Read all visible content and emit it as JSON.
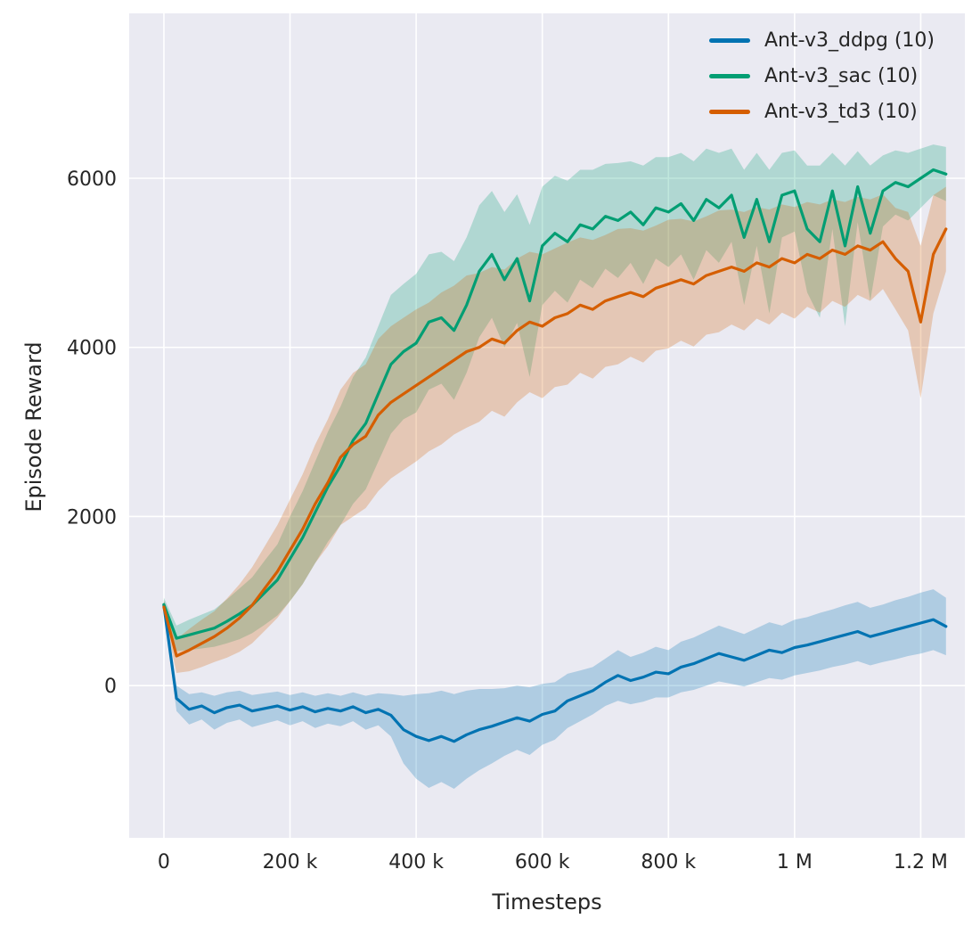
{
  "figure": {
    "background": "#ffffff",
    "plot_bg": "#eaeaf2",
    "grid_color": "#ffffff",
    "text_color": "#262626",
    "tick_font_size": 22
  },
  "chart_data": {
    "type": "line",
    "title": "",
    "xlabel": "Timesteps",
    "ylabel": "Episode Reward",
    "legend_position": "upper right",
    "grid": true,
    "xlim": [
      -55000,
      1270000
    ],
    "ylim": [
      -1800,
      7950
    ],
    "xticks": [
      {
        "v": 0,
        "label": "0"
      },
      {
        "v": 200000,
        "label": "200 k"
      },
      {
        "v": 400000,
        "label": "400 k"
      },
      {
        "v": 600000,
        "label": "600 k"
      },
      {
        "v": 800000,
        "label": "800 k"
      },
      {
        "v": 1000000,
        "label": "1 M"
      },
      {
        "v": 1200000,
        "label": "1.2 M"
      }
    ],
    "yticks": [
      {
        "v": 0,
        "label": "0"
      },
      {
        "v": 2000,
        "label": "2000"
      },
      {
        "v": 4000,
        "label": "4000"
      },
      {
        "v": 6000,
        "label": "6000"
      }
    ],
    "x": [
      0,
      20000,
      40000,
      60000,
      80000,
      100000,
      120000,
      140000,
      160000,
      180000,
      200000,
      220000,
      240000,
      260000,
      280000,
      300000,
      320000,
      340000,
      360000,
      380000,
      400000,
      420000,
      440000,
      460000,
      480000,
      500000,
      520000,
      540000,
      560000,
      580000,
      600000,
      620000,
      640000,
      660000,
      680000,
      700000,
      720000,
      740000,
      760000,
      780000,
      800000,
      820000,
      840000,
      860000,
      880000,
      900000,
      920000,
      940000,
      960000,
      980000,
      1000000,
      1020000,
      1040000,
      1060000,
      1080000,
      1100000,
      1120000,
      1140000,
      1160000,
      1180000,
      1200000,
      1220000,
      1240000
    ],
    "series": [
      {
        "name": "Ant-v3_ddpg (10)",
        "color": "#0173b2",
        "band_opacity": 0.25,
        "mean": [
          950,
          -150,
          -280,
          -240,
          -320,
          -260,
          -230,
          -300,
          -270,
          -240,
          -290,
          -250,
          -310,
          -270,
          -300,
          -250,
          -320,
          -280,
          -350,
          -520,
          -600,
          -650,
          -600,
          -660,
          -580,
          -520,
          -480,
          -430,
          -380,
          -420,
          -340,
          -300,
          -180,
          -120,
          -60,
          40,
          120,
          60,
          100,
          160,
          140,
          220,
          260,
          320,
          380,
          340,
          300,
          360,
          420,
          390,
          450,
          480,
          520,
          560,
          600,
          640,
          580,
          620,
          660,
          700,
          740,
          780,
          700
        ],
        "band": [
          60,
          150,
          180,
          160,
          200,
          180,
          170,
          190,
          180,
          170,
          180,
          170,
          190,
          180,
          180,
          170,
          200,
          190,
          250,
          400,
          500,
          560,
          540,
          560,
          520,
          480,
          440,
          400,
          380,
          400,
          360,
          340,
          320,
          300,
          280,
          280,
          300,
          280,
          290,
          300,
          280,
          300,
          310,
          320,
          330,
          320,
          310,
          320,
          330,
          320,
          330,
          330,
          340,
          340,
          350,
          350,
          340,
          340,
          350,
          350,
          360,
          360,
          340
        ]
      },
      {
        "name": "Ant-v3_sac (10)",
        "color": "#029e73",
        "band_opacity": 0.25,
        "mean": [
          960,
          560,
          600,
          640,
          680,
          760,
          850,
          950,
          1100,
          1250,
          1500,
          1750,
          2050,
          2350,
          2600,
          2900,
          3100,
          3450,
          3800,
          3950,
          4050,
          4300,
          4350,
          4200,
          4500,
          4900,
          5100,
          4800,
          5050,
          4550,
          5200,
          5350,
          5250,
          5450,
          5400,
          5550,
          5500,
          5600,
          5450,
          5650,
          5600,
          5700,
          5500,
          5750,
          5650,
          5800,
          5300,
          5750,
          5250,
          5800,
          5850,
          5400,
          5250,
          5850,
          5200,
          5900,
          5350,
          5850,
          5950,
          5900,
          6000,
          6100,
          6050
        ],
        "band": [
          80,
          150,
          180,
          200,
          220,
          260,
          300,
          330,
          380,
          420,
          500,
          550,
          600,
          650,
          700,
          750,
          780,
          800,
          820,
          800,
          820,
          800,
          780,
          820,
          800,
          780,
          750,
          800,
          760,
          900,
          700,
          680,
          720,
          650,
          700,
          620,
          680,
          600,
          700,
          600,
          650,
          600,
          700,
          600,
          650,
          550,
          800,
          550,
          850,
          500,
          480,
          750,
          900,
          450,
          950,
          420,
          800,
          420,
          380,
          400,
          350,
          300,
          320
        ]
      },
      {
        "name": "Ant-v3_td3 (10)",
        "color": "#d55e00",
        "band_opacity": 0.25,
        "mean": [
          930,
          350,
          420,
          500,
          580,
          680,
          800,
          950,
          1150,
          1350,
          1600,
          1850,
          2150,
          2400,
          2700,
          2850,
          2950,
          3200,
          3350,
          3450,
          3550,
          3650,
          3750,
          3850,
          3950,
          4000,
          4100,
          4050,
          4200,
          4300,
          4250,
          4350,
          4400,
          4500,
          4450,
          4550,
          4600,
          4650,
          4600,
          4700,
          4750,
          4800,
          4750,
          4850,
          4900,
          4950,
          4900,
          5000,
          4950,
          5050,
          5000,
          5100,
          5050,
          5150,
          5100,
          5200,
          5150,
          5250,
          5050,
          4900,
          4300,
          5100,
          5400
        ],
        "band": [
          80,
          200,
          250,
          280,
          300,
          350,
          400,
          450,
          500,
          550,
          600,
          650,
          700,
          750,
          800,
          850,
          850,
          900,
          900,
          900,
          900,
          880,
          900,
          880,
          900,
          880,
          850,
          870,
          850,
          830,
          850,
          820,
          840,
          800,
          820,
          780,
          800,
          760,
          780,
          740,
          760,
          720,
          740,
          700,
          720,
          680,
          700,
          660,
          680,
          640,
          660,
          620,
          640,
          600,
          620,
          580,
          600,
          560,
          600,
          700,
          900,
          700,
          500
        ]
      }
    ]
  }
}
